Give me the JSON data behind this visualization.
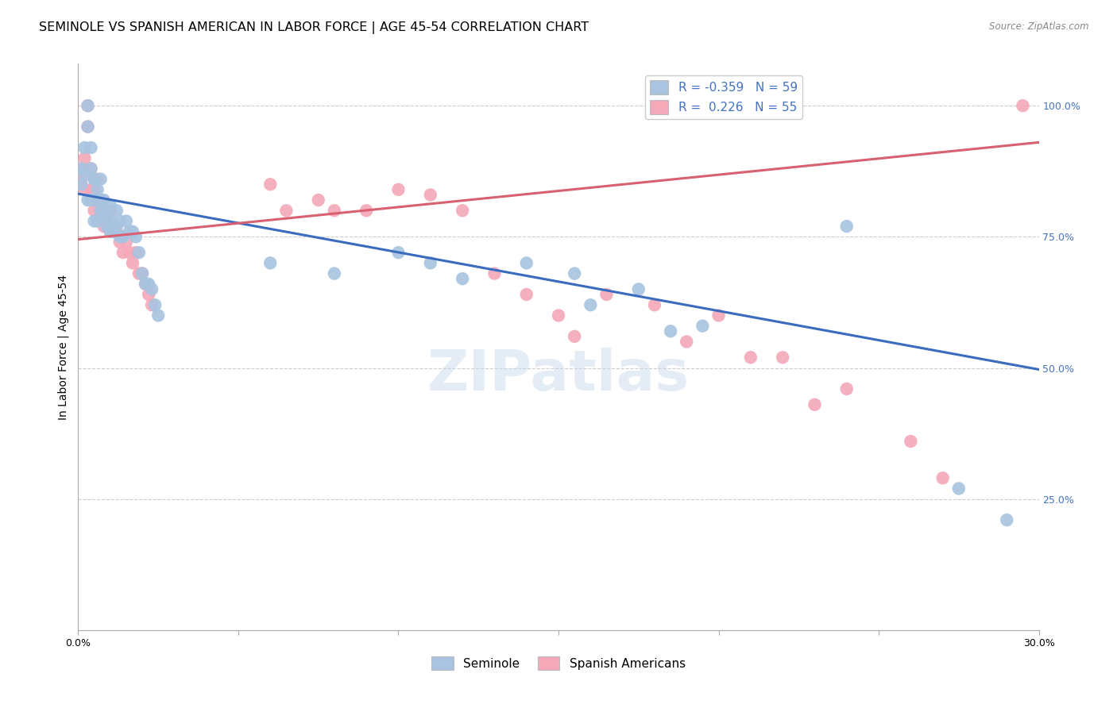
{
  "title": "SEMINOLE VS SPANISH AMERICAN IN LABOR FORCE | AGE 45-54 CORRELATION CHART",
  "source": "Source: ZipAtlas.com",
  "ylabel": "In Labor Force | Age 45-54",
  "xmin": 0.0,
  "xmax": 0.3,
  "ymin": 0.0,
  "ymax": 1.08,
  "R_blue": -0.359,
  "N_blue": 59,
  "R_pink": 0.226,
  "N_pink": 55,
  "blue_color": "#a8c4e0",
  "pink_color": "#f4a8b8",
  "blue_line_color": "#3a6bbf",
  "pink_line_color": "#d96070",
  "right_tick_color": "#4472c4",
  "watermark_color": "#c5d8ea",
  "grid_color": "#cccccc",
  "background_color": "#ffffff",
  "title_fontsize": 11.5,
  "axis_label_fontsize": 10,
  "tick_fontsize": 9,
  "legend_fontsize": 11,
  "legend_blue_label": "Seminole",
  "legend_pink_label": "Spanish Americans",
  "blue_x": [
    0.001,
    0.001,
    0.002,
    0.002,
    0.003,
    0.003,
    0.003,
    0.004,
    0.004,
    0.004,
    0.005,
    0.005,
    0.005,
    0.005,
    0.006,
    0.006,
    0.006,
    0.007,
    0.007,
    0.007,
    0.008,
    0.008,
    0.008,
    0.009,
    0.009,
    0.01,
    0.01,
    0.01,
    0.011,
    0.012,
    0.012,
    0.013,
    0.013,
    0.014,
    0.015,
    0.016,
    0.017,
    0.018,
    0.019,
    0.02,
    0.021,
    0.022,
    0.023,
    0.024,
    0.025,
    0.06,
    0.08,
    0.1,
    0.11,
    0.12,
    0.14,
    0.155,
    0.16,
    0.175,
    0.185,
    0.195,
    0.24,
    0.275,
    0.29
  ],
  "blue_y": [
    0.88,
    0.85,
    0.92,
    0.87,
    1.0,
    0.96,
    0.82,
    0.92,
    0.88,
    0.82,
    0.86,
    0.82,
    0.86,
    0.78,
    0.84,
    0.82,
    0.78,
    0.86,
    0.82,
    0.8,
    0.82,
    0.8,
    0.79,
    0.79,
    0.77,
    0.81,
    0.78,
    0.76,
    0.76,
    0.8,
    0.77,
    0.78,
    0.75,
    0.75,
    0.78,
    0.76,
    0.76,
    0.75,
    0.72,
    0.68,
    0.66,
    0.66,
    0.65,
    0.62,
    0.6,
    0.7,
    0.68,
    0.72,
    0.7,
    0.67,
    0.7,
    0.68,
    0.62,
    0.65,
    0.57,
    0.58,
    0.77,
    0.27,
    0.21
  ],
  "pink_x": [
    0.001,
    0.001,
    0.002,
    0.002,
    0.003,
    0.003,
    0.004,
    0.004,
    0.005,
    0.005,
    0.006,
    0.006,
    0.007,
    0.007,
    0.008,
    0.008,
    0.009,
    0.01,
    0.01,
    0.011,
    0.012,
    0.013,
    0.014,
    0.015,
    0.016,
    0.017,
    0.018,
    0.019,
    0.02,
    0.021,
    0.022,
    0.023,
    0.06,
    0.065,
    0.075,
    0.08,
    0.09,
    0.1,
    0.11,
    0.12,
    0.13,
    0.14,
    0.15,
    0.155,
    0.165,
    0.18,
    0.19,
    0.2,
    0.21,
    0.22,
    0.23,
    0.24,
    0.26,
    0.27,
    0.295
  ],
  "pink_y": [
    0.88,
    0.86,
    0.9,
    0.84,
    1.0,
    0.96,
    0.88,
    0.84,
    0.84,
    0.8,
    0.86,
    0.82,
    0.82,
    0.8,
    0.8,
    0.77,
    0.78,
    0.8,
    0.76,
    0.76,
    0.76,
    0.74,
    0.72,
    0.74,
    0.72,
    0.7,
    0.72,
    0.68,
    0.68,
    0.66,
    0.64,
    0.62,
    0.85,
    0.8,
    0.82,
    0.8,
    0.8,
    0.84,
    0.83,
    0.8,
    0.68,
    0.64,
    0.6,
    0.56,
    0.64,
    0.62,
    0.55,
    0.6,
    0.52,
    0.52,
    0.43,
    0.46,
    0.36,
    0.29,
    1.0
  ]
}
